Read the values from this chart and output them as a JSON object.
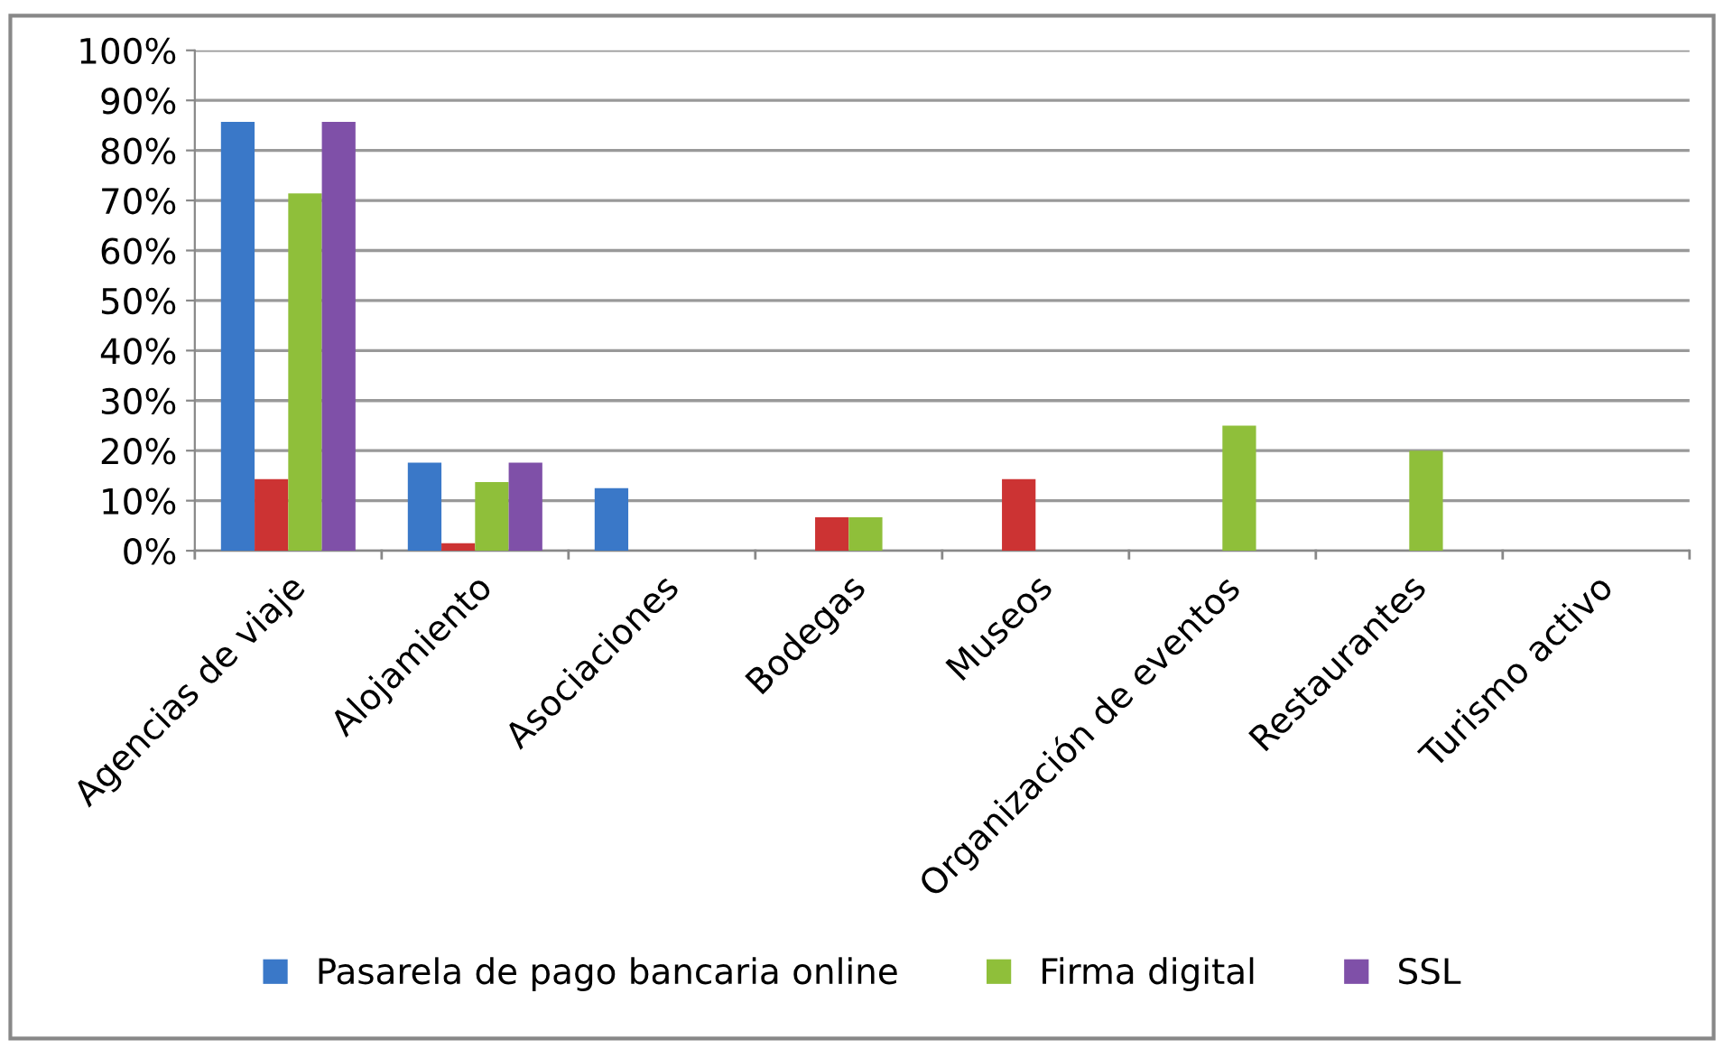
{
  "chart_data": {
    "type": "bar",
    "categories": [
      "Agencias de viaje",
      "Alojamiento",
      "Asociaciones",
      "Bodegas",
      "Museos",
      "Organización de eventos",
      "Restaurantes",
      "Turismo activo"
    ],
    "series": [
      {
        "name": "Pasarela de pago bancaria online",
        "color": "#3a78c8",
        "values": [
          85.7,
          17.6,
          12.5,
          null,
          null,
          null,
          null,
          null
        ]
      },
      {
        "color": "#cc3333",
        "values": [
          14.3,
          1.5,
          null,
          6.7,
          14.3,
          null,
          null,
          null
        ]
      },
      {
        "name": "Firma digital",
        "color": "#8fbf3a",
        "values": [
          71.4,
          13.7,
          null,
          6.7,
          null,
          25,
          20,
          null
        ]
      },
      {
        "name": "SSL",
        "color": "#7f50a8",
        "values": [
          85.7,
          17.6,
          null,
          null,
          null,
          null,
          null,
          null
        ]
      }
    ],
    "ylim": [
      0,
      100
    ],
    "yticks": [
      {
        "value": 0,
        "label": "0%"
      },
      {
        "value": 10,
        "label": "10%"
      },
      {
        "value": 20,
        "label": "20%"
      },
      {
        "value": 30,
        "label": "30%"
      },
      {
        "value": 40,
        "label": "40%"
      },
      {
        "value": 50,
        "label": "50%"
      },
      {
        "value": 60,
        "label": "60%"
      },
      {
        "value": 70,
        "label": "70%"
      },
      {
        "value": 80,
        "label": "80%"
      },
      {
        "value": 90,
        "label": "90%"
      },
      {
        "value": 100,
        "label": "100%"
      }
    ],
    "grid": "y",
    "legend": "bottom"
  }
}
